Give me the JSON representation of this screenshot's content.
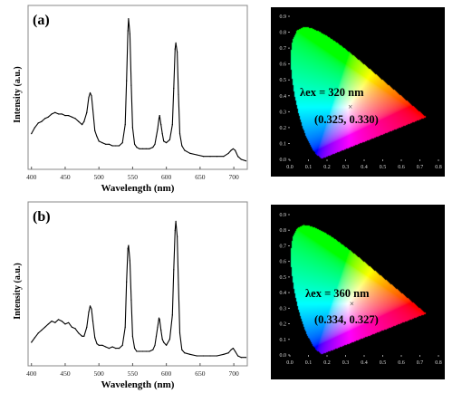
{
  "chart_data": [
    {
      "id": "a",
      "panel_label": "(a)",
      "type": "line",
      "xlabel": "Wavelength (nm)",
      "ylabel": "Intensity (a.u.)",
      "xlim": [
        395,
        720
      ],
      "xticks": [
        400,
        450,
        500,
        550,
        600,
        650,
        700
      ],
      "yticks_visible": false,
      "series": [
        {
          "points": [
            [
              400,
              0.2
            ],
            [
              405,
              0.24
            ],
            [
              410,
              0.27
            ],
            [
              415,
              0.28
            ],
            [
              420,
              0.3
            ],
            [
              425,
              0.31
            ],
            [
              430,
              0.33
            ],
            [
              435,
              0.34
            ],
            [
              440,
              0.33
            ],
            [
              445,
              0.33
            ],
            [
              450,
              0.32
            ],
            [
              455,
              0.32
            ],
            [
              460,
              0.31
            ],
            [
              465,
              0.3
            ],
            [
              470,
              0.28
            ],
            [
              475,
              0.26
            ],
            [
              478,
              0.28
            ],
            [
              482,
              0.34
            ],
            [
              485,
              0.44
            ],
            [
              487,
              0.47
            ],
            [
              489,
              0.45
            ],
            [
              491,
              0.36
            ],
            [
              494,
              0.22
            ],
            [
              497,
              0.18
            ],
            [
              500,
              0.15
            ],
            [
              505,
              0.14
            ],
            [
              510,
              0.13
            ],
            [
              515,
              0.13
            ],
            [
              520,
              0.12
            ],
            [
              525,
              0.12
            ],
            [
              530,
              0.12
            ],
            [
              535,
              0.14
            ],
            [
              539,
              0.26
            ],
            [
              541,
              0.55
            ],
            [
              543,
              0.88
            ],
            [
              544,
              0.96
            ],
            [
              546,
              0.86
            ],
            [
              548,
              0.52
            ],
            [
              550,
              0.24
            ],
            [
              553,
              0.13
            ],
            [
              556,
              0.11
            ],
            [
              560,
              0.1
            ],
            [
              565,
              0.1
            ],
            [
              570,
              0.1
            ],
            [
              575,
              0.1
            ],
            [
              580,
              0.11
            ],
            [
              583,
              0.13
            ],
            [
              585,
              0.18
            ],
            [
              587,
              0.23
            ],
            [
              589,
              0.3
            ],
            [
              590,
              0.32
            ],
            [
              592,
              0.26
            ],
            [
              594,
              0.2
            ],
            [
              596,
              0.15
            ],
            [
              600,
              0.14
            ],
            [
              605,
              0.16
            ],
            [
              609,
              0.26
            ],
            [
              611,
              0.5
            ],
            [
              613,
              0.76
            ],
            [
              614,
              0.8
            ],
            [
              616,
              0.74
            ],
            [
              618,
              0.46
            ],
            [
              620,
              0.2
            ],
            [
              623,
              0.12
            ],
            [
              627,
              0.09
            ],
            [
              635,
              0.07
            ],
            [
              645,
              0.06
            ],
            [
              655,
              0.05
            ],
            [
              665,
              0.05
            ],
            [
              675,
              0.05
            ],
            [
              685,
              0.05
            ],
            [
              692,
              0.07
            ],
            [
              696,
              0.09
            ],
            [
              699,
              0.1
            ],
            [
              702,
              0.09
            ],
            [
              706,
              0.05
            ],
            [
              711,
              0.03
            ],
            [
              718,
              0.02
            ]
          ]
        }
      ]
    },
    {
      "id": "a-cie",
      "type": "scatter",
      "subtype": "CIE 1931 chromaticity diagram",
      "xlim": [
        0,
        0.8
      ],
      "ylim": [
        0,
        0.9
      ],
      "xticks": [
        "0.0",
        "0.1",
        "0.2",
        "0.3",
        "0.4",
        "0.5",
        "0.6",
        "0.7",
        "0.8"
      ],
      "yticks": [
        "0.0",
        "0.1",
        "0.2",
        "0.3",
        "0.4",
        "0.5",
        "0.6",
        "0.7",
        "0.8",
        "0.9"
      ],
      "annotation": "λex = 320 nm",
      "point_label": "(0.325, 0.330)",
      "point": [
        0.325,
        0.33
      ],
      "marker": "×",
      "background": "#000000"
    },
    {
      "id": "b",
      "panel_label": "(b)",
      "type": "line",
      "xlabel": "Wavelength (nm)",
      "ylabel": "Intensity (a.u.)",
      "xlim": [
        395,
        720
      ],
      "xticks": [
        400,
        450,
        500,
        550,
        600,
        650,
        700
      ],
      "yticks_visible": false,
      "series": [
        {
          "points": [
            [
              400,
              0.12
            ],
            [
              405,
              0.15
            ],
            [
              410,
              0.18
            ],
            [
              415,
              0.2
            ],
            [
              420,
              0.22
            ],
            [
              425,
              0.24
            ],
            [
              430,
              0.26
            ],
            [
              435,
              0.25
            ],
            [
              440,
              0.27
            ],
            [
              445,
              0.26
            ],
            [
              450,
              0.24
            ],
            [
              455,
              0.25
            ],
            [
              460,
              0.22
            ],
            [
              465,
              0.21
            ],
            [
              470,
              0.18
            ],
            [
              475,
              0.16
            ],
            [
              478,
              0.16
            ],
            [
              482,
              0.22
            ],
            [
              485,
              0.32
            ],
            [
              487,
              0.36
            ],
            [
              489,
              0.34
            ],
            [
              491,
              0.26
            ],
            [
              494,
              0.15
            ],
            [
              497,
              0.11
            ],
            [
              500,
              0.1
            ],
            [
              505,
              0.1
            ],
            [
              510,
              0.09
            ],
            [
              515,
              0.08
            ],
            [
              520,
              0.09
            ],
            [
              525,
              0.08
            ],
            [
              530,
              0.08
            ],
            [
              535,
              0.1
            ],
            [
              539,
              0.22
            ],
            [
              541,
              0.52
            ],
            [
              543,
              0.74
            ],
            [
              544,
              0.76
            ],
            [
              546,
              0.66
            ],
            [
              548,
              0.4
            ],
            [
              550,
              0.16
            ],
            [
              553,
              0.08
            ],
            [
              556,
              0.06
            ],
            [
              560,
              0.06
            ],
            [
              565,
              0.06
            ],
            [
              570,
              0.06
            ],
            [
              575,
              0.06
            ],
            [
              580,
              0.07
            ],
            [
              583,
              0.1
            ],
            [
              585,
              0.16
            ],
            [
              587,
              0.22
            ],
            [
              589,
              0.28
            ],
            [
              590,
              0.27
            ],
            [
              592,
              0.2
            ],
            [
              594,
              0.14
            ],
            [
              596,
              0.12
            ],
            [
              600,
              0.1
            ],
            [
              605,
              0.14
            ],
            [
              609,
              0.3
            ],
            [
              611,
              0.6
            ],
            [
              613,
              0.86
            ],
            [
              614,
              0.92
            ],
            [
              616,
              0.82
            ],
            [
              618,
              0.5
            ],
            [
              620,
              0.18
            ],
            [
              623,
              0.07
            ],
            [
              627,
              0.05
            ],
            [
              635,
              0.04
            ],
            [
              645,
              0.03
            ],
            [
              655,
              0.03
            ],
            [
              665,
              0.03
            ],
            [
              675,
              0.03
            ],
            [
              685,
              0.04
            ],
            [
              692,
              0.05
            ],
            [
              696,
              0.07
            ],
            [
              699,
              0.08
            ],
            [
              702,
              0.06
            ],
            [
              706,
              0.03
            ],
            [
              711,
              0.02
            ],
            [
              718,
              0.02
            ]
          ]
        }
      ]
    },
    {
      "id": "b-cie",
      "type": "scatter",
      "subtype": "CIE 1931 chromaticity diagram",
      "xlim": [
        0,
        0.8
      ],
      "ylim": [
        0,
        0.9
      ],
      "xticks": [
        "0.0",
        "0.1",
        "0.2",
        "0.3",
        "0.4",
        "0.5",
        "0.6",
        "0.7",
        "0.8"
      ],
      "yticks": [
        "0.0",
        "0.1",
        "0.2",
        "0.3",
        "0.4",
        "0.5",
        "0.6",
        "0.7",
        "0.8",
        "0.9"
      ],
      "annotation": "λex = 360 nm",
      "point_label": "(0.334, 0.327)",
      "point": [
        0.334,
        0.327
      ],
      "marker": "×",
      "background": "#000000"
    }
  ]
}
